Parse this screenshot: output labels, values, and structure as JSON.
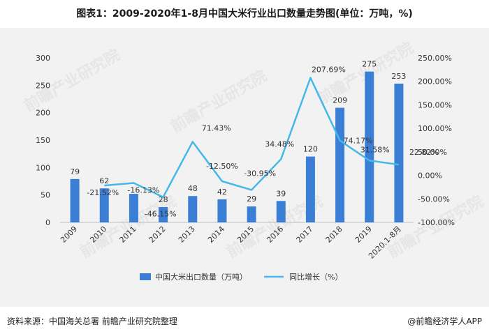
{
  "title": "图表1：2009-2020年1-8月中国大米行业出口数量走势图(单位：万吨，%)",
  "source": "资料来源：中国海关总署 前瞻产业研究院整理",
  "brand": "@前瞻经济学人APP",
  "watermark": "前瞻产业研究院",
  "colors": {
    "bar": "#3a7fd5",
    "line": "#45b7e8",
    "text": "#333333"
  },
  "chart_data": {
    "type": "bar+line",
    "categories": [
      "2009",
      "2010",
      "2011",
      "2012",
      "2013",
      "2014",
      "2015",
      "2016",
      "2017",
      "2018",
      "2019",
      "2020.1-8月"
    ],
    "series": [
      {
        "name": "中国大米出口数量（万吨）",
        "type": "bar",
        "axis": "left",
        "values": [
          79,
          62,
          52,
          28,
          48,
          42,
          29,
          39,
          120,
          209,
          275,
          253
        ],
        "labels": [
          "79",
          "62",
          "",
          "28",
          "48",
          "42",
          "29",
          "39",
          "120",
          "209",
          "275",
          "253"
        ]
      },
      {
        "name": "同比增长（%）",
        "type": "line",
        "axis": "right",
        "values": [
          null,
          -21.5,
          -16.13,
          -46.15,
          71.43,
          -12.5,
          -30.95,
          34.48,
          207.69,
          74.17,
          31.58,
          22.82
        ],
        "labels": [
          "",
          "-21.52%",
          "-16.13%",
          "-46.15%",
          "71.43%",
          "-12.50%",
          "-30.95%",
          "34.48%",
          "207.69%",
          "74.17%",
          "31.58%",
          "22.82%"
        ]
      }
    ],
    "y_left": {
      "min": 0,
      "max": 300,
      "ticks": [
        "0",
        "50",
        "100",
        "150",
        "200",
        "250",
        "300"
      ]
    },
    "y_right": {
      "min": -100,
      "max": 250,
      "ticks": [
        "-100.00%",
        "-50.00%",
        "0.00%",
        "50.00%",
        "100.00%",
        "150.00%",
        "200.00%",
        "250.00%"
      ]
    },
    "legend": "bottom-center",
    "grid": false
  }
}
